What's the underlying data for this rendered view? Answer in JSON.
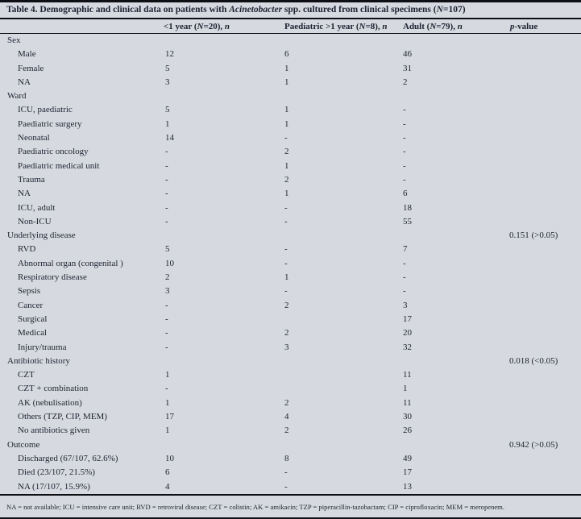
{
  "title": {
    "part1": "Table 4. Demographic and clinical data on patients with ",
    "organism": "Acinetobacter",
    "part2": " spp. cultured from clinical specimens (",
    "n_symbol": "N",
    "part3": "=107)"
  },
  "header": {
    "under1": {
      "pre": "<1 year (",
      "n": "N",
      "mid": "=20), ",
      "count": "n"
    },
    "paediatric": {
      "pre": "Paediatric >1 year (",
      "n": "N",
      "mid": "=8), ",
      "count": "n"
    },
    "adult": {
      "pre": "Adult (",
      "n": "N",
      "mid": "=79), ",
      "count": "n"
    },
    "pvalue": {
      "p": "p",
      "rest": "-value"
    }
  },
  "table": {
    "rows": [
      {
        "type": "section",
        "label": "Sex",
        "c1": "",
        "c2": "",
        "c3": "",
        "p": ""
      },
      {
        "type": "item",
        "label": "Male",
        "c1": "12",
        "c2": "6",
        "c3": "46",
        "p": ""
      },
      {
        "type": "item",
        "label": "Female",
        "c1": "5",
        "c2": "1",
        "c3": "31",
        "p": ""
      },
      {
        "type": "item",
        "label": "NA",
        "c1": "3",
        "c2": "1",
        "c3": "2",
        "p": ""
      },
      {
        "type": "section",
        "label": "Ward",
        "c1": "",
        "c2": "",
        "c3": "",
        "p": ""
      },
      {
        "type": "item",
        "label": "ICU, paediatric",
        "c1": "5",
        "c2": "1",
        "c3": "-",
        "p": ""
      },
      {
        "type": "item",
        "label": "Paediatric surgery",
        "c1": "1",
        "c2": "1",
        "c3": "-",
        "p": ""
      },
      {
        "type": "item",
        "label": "Neonatal",
        "c1": "14",
        "c2": "-",
        "c3": "-",
        "p": ""
      },
      {
        "type": "item",
        "label": "Paediatric oncology",
        "c1": "-",
        "c2": "2",
        "c3": "-",
        "p": ""
      },
      {
        "type": "item",
        "label": "Paediatric medical unit",
        "c1": "-",
        "c2": "1",
        "c3": "-",
        "p": ""
      },
      {
        "type": "item",
        "label": "Trauma",
        "c1": "-",
        "c2": "2",
        "c3": "-",
        "p": ""
      },
      {
        "type": "item",
        "label": "NA",
        "c1": "-",
        "c2": "1",
        "c3": "6",
        "p": ""
      },
      {
        "type": "item",
        "label": "ICU, adult",
        "c1": "-",
        "c2": "-",
        "c3": "18",
        "p": ""
      },
      {
        "type": "item",
        "label": "Non-ICU",
        "c1": "-",
        "c2": "-",
        "c3": "55",
        "p": ""
      },
      {
        "type": "section",
        "label": "Underlying disease",
        "c1": "",
        "c2": "",
        "c3": "",
        "p": "0.151 (>0.05)"
      },
      {
        "type": "item",
        "label": "RVD",
        "c1": "5",
        "c2": "-",
        "c3": "7",
        "p": ""
      },
      {
        "type": "item",
        "label": "Abnormal organ (congenital )",
        "c1": "10",
        "c2": "-",
        "c3": "-",
        "p": ""
      },
      {
        "type": "item",
        "label": "Respiratory disease",
        "c1": "2",
        "c2": "1",
        "c3": "-",
        "p": ""
      },
      {
        "type": "item",
        "label": "Sepsis",
        "c1": "3",
        "c2": "-",
        "c3": "-",
        "p": ""
      },
      {
        "type": "item",
        "label": "Cancer",
        "c1": "-",
        "c2": "2",
        "c3": "3",
        "p": ""
      },
      {
        "type": "item",
        "label": "Surgical",
        "c1": "-",
        "c2": "",
        "c3": "17",
        "p": ""
      },
      {
        "type": "item",
        "label": "Medical",
        "c1": "-",
        "c2": "2",
        "c3": "20",
        "p": ""
      },
      {
        "type": "item",
        "label": "Injury/trauma",
        "c1": "-",
        "c2": "3",
        "c3": "32",
        "p": ""
      },
      {
        "type": "section",
        "label": "Antibiotic history",
        "c1": "",
        "c2": "",
        "c3": "",
        "p": "0.018 (<0.05)"
      },
      {
        "type": "item",
        "label": "CZT",
        "c1": "1",
        "c2": "",
        "c3": "11",
        "p": ""
      },
      {
        "type": "item",
        "label": "CZT + combination",
        "c1": "-",
        "c2": "",
        "c3": "1",
        "p": ""
      },
      {
        "type": "item",
        "label": "AK (nebulisation)",
        "c1": "1",
        "c2": "2",
        "c3": "11",
        "p": ""
      },
      {
        "type": "item",
        "label": "Others (TZP, CIP, MEM)",
        "c1": "17",
        "c2": "4",
        "c3": "30",
        "p": ""
      },
      {
        "type": "item",
        "label": "No antibiotics given",
        "c1": "1",
        "c2": "2",
        "c3": "26",
        "p": ""
      },
      {
        "type": "section",
        "label": "Outcome",
        "c1": "",
        "c2": "",
        "c3": "",
        "p": "0.942 (>0.05)"
      },
      {
        "type": "item",
        "label": "Discharged (67/107, 62.6%)",
        "c1": "10",
        "c2": "8",
        "c3": "49",
        "p": ""
      },
      {
        "type": "item",
        "label": "Died (23/107, 21.5%)",
        "c1": "6",
        "c2": "-",
        "c3": "17",
        "p": ""
      },
      {
        "type": "item",
        "label": "NA (17/107, 15.9%)",
        "c1": "4",
        "c2": "-",
        "c3": "13",
        "p": ""
      }
    ]
  },
  "footnote": "NA = not available; ICU = intensive care unit; RVD = retroviral disease; CZT = colistin; AK = amikacin; TZP = piperacillin-tazobactam; CIP = ciprofloxacin; MEM = meropenem.",
  "colors": {
    "background": "#d6dae0",
    "text": "#1e2130",
    "rule": "#0e0f14"
  }
}
